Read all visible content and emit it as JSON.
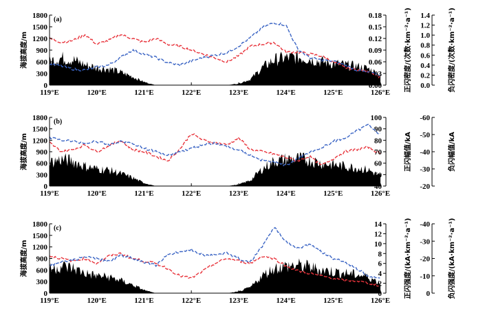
{
  "colors": {
    "terrain": "#000000",
    "positive": "#e8333b",
    "negative": "#3a64c4",
    "axis": "#000000"
  },
  "x_tick_labels": [
    "119°E",
    "120°E",
    "121°E",
    "122°E",
    "123°E",
    "124°E",
    "125°E",
    "126°E"
  ],
  "chart_data": [
    {
      "type": "line",
      "panel_label": "(a)",
      "x": [
        119.0,
        119.25,
        119.5,
        119.75,
        120.0,
        120.25,
        120.5,
        120.75,
        121.0,
        121.25,
        121.5,
        121.75,
        122.0,
        122.25,
        122.5,
        122.75,
        123.0,
        123.25,
        123.5,
        123.75,
        124.0,
        124.25,
        124.5,
        124.75,
        125.0,
        125.25,
        125.5,
        125.75,
        126.0
      ],
      "y_left": {
        "label": "海拔高度/m",
        "ticks": [
          "0",
          "300",
          "600",
          "900",
          "1200",
          "1500",
          "1800"
        ],
        "ylim": [
          0,
          1800
        ]
      },
      "y_right1": {
        "label": "正闪密度/(次数·km⁻²·a⁻¹)",
        "ticks": [
          "0.00",
          "0.03",
          "0.06",
          "0.09",
          "0.12",
          "0.15",
          "0.18"
        ],
        "ylim": [
          0,
          0.18
        ]
      },
      "y_right2": {
        "label": "负闪密度/(次数·km⁻²·a⁻¹)",
        "ticks": [
          "0.0",
          "0.2",
          "0.4",
          "0.6",
          "0.8",
          "1.0",
          "1.2",
          "1.4"
        ],
        "ylim": [
          0,
          1.4
        ]
      },
      "terrain": [
        620,
        700,
        650,
        520,
        450,
        420,
        330,
        220,
        80,
        0,
        0,
        0,
        0,
        0,
        0,
        0,
        40,
        150,
        450,
        650,
        700,
        720,
        680,
        600,
        560,
        520,
        480,
        420,
        260
      ],
      "series": [
        {
          "axis": "y_right1",
          "values": [
            0.12,
            0.11,
            0.115,
            0.13,
            0.105,
            0.115,
            0.13,
            0.12,
            0.11,
            0.12,
            0.105,
            0.1,
            0.09,
            0.08,
            0.07,
            0.06,
            0.075,
            0.1,
            0.105,
            0.11,
            0.085,
            0.085,
            0.08,
            0.075,
            0.06,
            0.045,
            0.04,
            0.035,
            0.02
          ]
        },
        {
          "axis": "y_right2",
          "values": [
            0.42,
            0.38,
            0.32,
            0.3,
            0.36,
            0.4,
            0.55,
            0.7,
            0.62,
            0.55,
            0.45,
            0.4,
            0.48,
            0.55,
            0.6,
            0.65,
            0.78,
            0.95,
            1.15,
            1.25,
            1.2,
            0.72,
            0.55,
            0.5,
            0.48,
            0.4,
            0.3,
            0.25,
            0.2
          ]
        }
      ]
    },
    {
      "type": "line",
      "panel_label": "(b)",
      "x": [
        119.0,
        119.25,
        119.5,
        119.75,
        120.0,
        120.25,
        120.5,
        120.75,
        121.0,
        121.25,
        121.5,
        121.75,
        122.0,
        122.25,
        122.5,
        122.75,
        123.0,
        123.25,
        123.5,
        123.75,
        124.0,
        124.25,
        124.5,
        124.75,
        125.0,
        125.25,
        125.5,
        125.75,
        126.0
      ],
      "y_left": {
        "label": "海拔高度/m",
        "ticks": [
          "0",
          "300",
          "600",
          "900",
          "1200",
          "1500",
          "1800"
        ],
        "ylim": [
          0,
          1800
        ]
      },
      "y_right1": {
        "label": "正闪幅值/kA",
        "ticks": [
          "40",
          "50",
          "60",
          "70",
          "80",
          "90",
          "100"
        ],
        "ylim": [
          40,
          100
        ]
      },
      "y_right2": {
        "label": "负闪幅值/kA",
        "ticks": [
          "-20",
          "-30",
          "-40",
          "-50",
          "-60"
        ],
        "ylim": [
          -20,
          -60
        ]
      },
      "terrain": [
        620,
        700,
        650,
        520,
        450,
        420,
        330,
        220,
        80,
        0,
        0,
        0,
        0,
        0,
        0,
        0,
        40,
        150,
        450,
        650,
        700,
        720,
        680,
        600,
        560,
        520,
        480,
        420,
        260
      ],
      "series": [
        {
          "axis": "y_right1",
          "values": [
            78,
            70,
            72,
            76,
            70,
            75,
            80,
            72,
            70,
            66,
            62,
            72,
            86,
            80,
            78,
            76,
            82,
            72,
            70,
            68,
            65,
            62,
            66,
            58,
            64,
            70,
            72,
            74,
            68
          ]
        },
        {
          "axis": "y_right2",
          "values": [
            -48,
            -47,
            -46,
            -45,
            -46,
            -44,
            -46,
            -45,
            -42,
            -40,
            -38,
            -40,
            -42,
            -44,
            -45,
            -43,
            -41,
            -38,
            -35,
            -34,
            -32,
            -36,
            -40,
            -42,
            -46,
            -48,
            -52,
            -56,
            -50
          ]
        }
      ]
    },
    {
      "type": "line",
      "panel_label": "(c)",
      "x": [
        119.0,
        119.25,
        119.5,
        119.75,
        120.0,
        120.25,
        120.5,
        120.75,
        121.0,
        121.25,
        121.5,
        121.75,
        122.0,
        122.25,
        122.5,
        122.75,
        123.0,
        123.25,
        123.5,
        123.75,
        124.0,
        124.25,
        124.5,
        124.75,
        125.0,
        125.25,
        125.5,
        125.75,
        126.0
      ],
      "y_left": {
        "label": "海拔高度/m",
        "ticks": [
          "0",
          "300",
          "600",
          "900",
          "1200",
          "1500",
          "1800"
        ],
        "ylim": [
          0,
          1800
        ]
      },
      "y_right1": {
        "label": "正闪强度/(kA·km⁻²·a⁻¹)",
        "ticks": [
          "0",
          "2",
          "4",
          "6",
          "8",
          "10",
          "12",
          "14"
        ],
        "ylim": [
          0,
          14
        ]
      },
      "y_right2": {
        "label": "负闪强度/(kA·km⁻²·a⁻¹)",
        "ticks": [
          "0",
          "-10",
          "-20",
          "-30",
          "-40"
        ],
        "ylim": [
          0,
          -40
        ]
      },
      "terrain": [
        620,
        700,
        650,
        520,
        450,
        420,
        330,
        220,
        80,
        0,
        0,
        0,
        0,
        0,
        0,
        0,
        40,
        150,
        450,
        650,
        700,
        720,
        680,
        600,
        560,
        520,
        480,
        420,
        260
      ],
      "series": [
        {
          "axis": "y_right1",
          "values": [
            7.5,
            7.0,
            6.5,
            7.0,
            6.0,
            7.5,
            8.0,
            7.0,
            6.5,
            6.0,
            5.0,
            3.5,
            3.0,
            4.5,
            6.0,
            7.0,
            6.5,
            6.0,
            7.5,
            7.0,
            5.5,
            4.5,
            4.0,
            3.5,
            3.0,
            2.5,
            2.5,
            2.0,
            1.5
          ]
        },
        {
          "axis": "y_right2",
          "values": [
            -16,
            -18,
            -19,
            -21,
            -20,
            -18,
            -22,
            -20,
            -18,
            -16,
            -22,
            -24,
            -25,
            -22,
            -22,
            -23,
            -20,
            -18,
            -27,
            -38,
            -30,
            -26,
            -28,
            -24,
            -20,
            -18,
            -14,
            -10,
            -8
          ]
        }
      ]
    }
  ]
}
